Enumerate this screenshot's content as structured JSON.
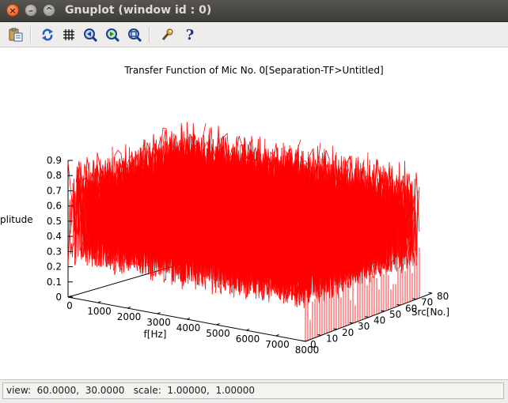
{
  "window": {
    "title": "Gnuplot (window id : 0)",
    "close_glyph": "×",
    "min_glyph": "–",
    "max_glyph": "^"
  },
  "toolbar": {
    "icons": [
      "copy-clipboard-icon",
      "replot-icon",
      "grid-icon",
      "zoom-previous-icon",
      "zoom-next-icon",
      "autoscale-icon",
      "settings-icon",
      "help-icon"
    ],
    "help_glyph": "?"
  },
  "plot": {
    "title": "Transfer Function of Mic No. 0[Separation-TF>Untitled]",
    "zlabel": "plitude",
    "xlabel": "f[Hz]",
    "ylabel": "Src[No.]",
    "line_color": "#ff0000"
  },
  "chart_data": {
    "type": "line",
    "title": "Transfer Function of Mic No. 0[Separation-TF>Untitled]",
    "xlabel": "f[Hz]",
    "ylabel": "Src[No.]",
    "zlabel": "plitude",
    "xlim": [
      0,
      8000
    ],
    "ylim": [
      0,
      80
    ],
    "zlim": [
      0,
      0.9
    ],
    "x_ticks": [
      "0",
      "1000",
      "2000",
      "3000",
      "4000",
      "5000",
      "6000",
      "7000",
      "8000"
    ],
    "y_ticks": [
      "0",
      "10",
      "20",
      "30",
      "40",
      "50",
      "60",
      "70",
      "80"
    ],
    "z_ticks": [
      "0",
      "0.1",
      "0.2",
      "0.3",
      "0.4",
      "0.5",
      "0.6",
      "0.7",
      "0.8",
      "0.9"
    ],
    "series_color": "#ff0000",
    "view": {
      "rot_x": 60,
      "rot_z": 30,
      "scale": 1,
      "scale_z": 1
    },
    "amplitude_range": [
      0.1,
      0.9
    ]
  },
  "status": {
    "text": "view:  60.0000,  30.0000   scale:  1.00000,  1.00000"
  }
}
